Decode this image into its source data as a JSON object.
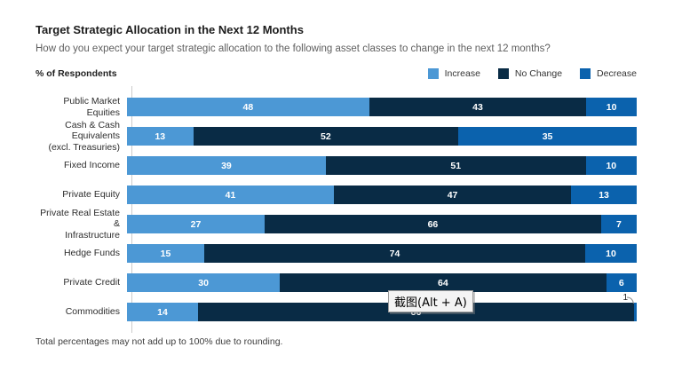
{
  "page": {
    "title": "Target Strategic Allocation in the Next 12 Months",
    "subtitle": "How do you expect your target strategic allocation to the following asset classes to change in the next 12 months?",
    "respondents_label": "% of Respondents",
    "footnote": "Total percentages may not add up to 100% due to rounding."
  },
  "overlay_tooltip": {
    "text": "截图(Alt + A)"
  },
  "colors": {
    "increase": "#4C98D5",
    "no_change": "#092B45",
    "decrease": "#0B62AD",
    "axis_line": "#CBCBCB"
  },
  "legend": [
    {
      "label": "Increase",
      "color_key": "increase"
    },
    {
      "label": "No Change",
      "color_key": "no_change"
    },
    {
      "label": "Decrease",
      "color_key": "decrease"
    }
  ],
  "chart_data": {
    "type": "bar",
    "orientation": "horizontal",
    "stacked": true,
    "unit": "percent",
    "value_labels": "inside, white; values too small to fit are labeled outside with a leader line",
    "categories": [
      "Public Market Equities",
      "Cash & Cash Equivalents\n(excl. Treasuries)",
      "Fixed Income",
      "Private Equity",
      "Private Real Estate &\nInfrastructure",
      "Hedge Funds",
      "Private Credit",
      "Commodities"
    ],
    "series": [
      {
        "name": "Increase",
        "color_key": "increase",
        "values": [
          48,
          13,
          39,
          41,
          27,
          15,
          30,
          14
        ]
      },
      {
        "name": "No Change",
        "color_key": "no_change",
        "values": [
          43,
          52,
          51,
          47,
          66,
          74,
          64,
          86
        ]
      },
      {
        "name": "Decrease",
        "color_key": "decrease",
        "values": [
          10,
          35,
          10,
          13,
          7,
          10,
          6,
          1
        ]
      }
    ]
  }
}
